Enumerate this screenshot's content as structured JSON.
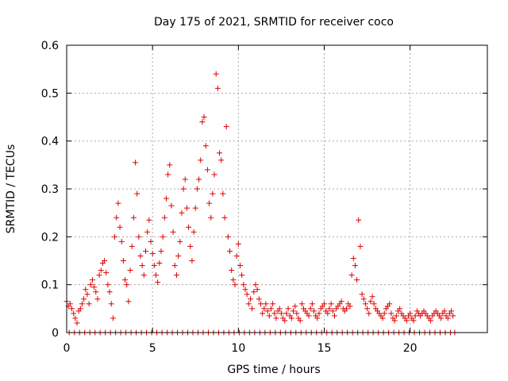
{
  "chart_data": {
    "type": "scatter",
    "title": "Day 175 of 2021, SRMTID for receiver coco",
    "xlabel": "GPS time / hours",
    "ylabel": "SRMTID / TECUs",
    "xlim": [
      0,
      24.5
    ],
    "ylim": [
      0,
      0.6
    ],
    "x_ticks": [
      0,
      5,
      10,
      15,
      20
    ],
    "y_ticks": [
      0,
      0.1,
      0.2,
      0.3,
      0.4,
      0.5,
      0.6
    ],
    "x_tick_labels": [
      "0",
      "5",
      "10",
      "15",
      "20"
    ],
    "y_tick_labels": [
      "0",
      "0.1",
      "0.2",
      "0.3",
      "0.4",
      "0.5",
      "0.6"
    ],
    "grid": true,
    "marker": "plus",
    "marker_color": "#dd0000",
    "series": [
      {
        "name": "SRMTID",
        "points": [
          [
            0.0,
            0.065
          ],
          [
            0.1,
            0.055
          ],
          [
            0.2,
            0.06
          ],
          [
            0.3,
            0.05
          ],
          [
            0.4,
            0.04
          ],
          [
            0.5,
            0.03
          ],
          [
            0.6,
            0.02
          ],
          [
            0.7,
            0.045
          ],
          [
            0.8,
            0.05
          ],
          [
            0.9,
            0.06
          ],
          [
            1.0,
            0.07
          ],
          [
            1.1,
            0.09
          ],
          [
            1.2,
            0.08
          ],
          [
            1.3,
            0.06
          ],
          [
            1.4,
            0.1
          ],
          [
            1.5,
            0.11
          ],
          [
            1.6,
            0.095
          ],
          [
            1.7,
            0.085
          ],
          [
            1.8,
            0.07
          ],
          [
            1.9,
            0.12
          ],
          [
            2.0,
            0.13
          ],
          [
            2.1,
            0.145
          ],
          [
            2.2,
            0.15
          ],
          [
            2.3,
            0.125
          ],
          [
            2.4,
            0.1
          ],
          [
            2.5,
            0.085
          ],
          [
            2.6,
            0.06
          ],
          [
            2.7,
            0.03
          ],
          [
            2.8,
            0.2
          ],
          [
            2.9,
            0.24
          ],
          [
            3.0,
            0.27
          ],
          [
            3.1,
            0.22
          ],
          [
            3.2,
            0.19
          ],
          [
            3.3,
            0.15
          ],
          [
            3.4,
            0.11
          ],
          [
            3.5,
            0.1
          ],
          [
            3.6,
            0.065
          ],
          [
            3.7,
            0.13
          ],
          [
            3.8,
            0.18
          ],
          [
            3.9,
            0.24
          ],
          [
            4.0,
            0.355
          ],
          [
            4.1,
            0.29
          ],
          [
            4.2,
            0.2
          ],
          [
            4.3,
            0.16
          ],
          [
            4.4,
            0.14
          ],
          [
            4.5,
            0.12
          ],
          [
            4.6,
            0.17
          ],
          [
            4.7,
            0.21
          ],
          [
            4.8,
            0.235
          ],
          [
            4.9,
            0.19
          ],
          [
            5.0,
            0.165
          ],
          [
            5.1,
            0.14
          ],
          [
            5.2,
            0.12
          ],
          [
            5.3,
            0.105
          ],
          [
            5.4,
            0.145
          ],
          [
            5.5,
            0.17
          ],
          [
            5.6,
            0.2
          ],
          [
            5.7,
            0.24
          ],
          [
            5.8,
            0.28
          ],
          [
            5.9,
            0.33
          ],
          [
            6.0,
            0.35
          ],
          [
            6.1,
            0.265
          ],
          [
            6.2,
            0.21
          ],
          [
            6.3,
            0.14
          ],
          [
            6.4,
            0.12
          ],
          [
            6.5,
            0.16
          ],
          [
            6.6,
            0.19
          ],
          [
            6.7,
            0.25
          ],
          [
            6.8,
            0.3
          ],
          [
            6.9,
            0.32
          ],
          [
            7.0,
            0.26
          ],
          [
            7.1,
            0.22
          ],
          [
            7.2,
            0.18
          ],
          [
            7.3,
            0.15
          ],
          [
            7.4,
            0.21
          ],
          [
            7.5,
            0.26
          ],
          [
            7.6,
            0.3
          ],
          [
            7.7,
            0.32
          ],
          [
            7.8,
            0.36
          ],
          [
            7.9,
            0.44
          ],
          [
            8.0,
            0.45
          ],
          [
            8.1,
            0.39
          ],
          [
            8.2,
            0.34
          ],
          [
            8.3,
            0.27
          ],
          [
            8.4,
            0.24
          ],
          [
            8.5,
            0.29
          ],
          [
            8.6,
            0.33
          ],
          [
            8.7,
            0.54
          ],
          [
            8.8,
            0.51
          ],
          [
            8.9,
            0.375
          ],
          [
            9.0,
            0.36
          ],
          [
            9.1,
            0.29
          ],
          [
            9.2,
            0.24
          ],
          [
            9.3,
            0.43
          ],
          [
            9.4,
            0.2
          ],
          [
            9.5,
            0.17
          ],
          [
            9.6,
            0.13
          ],
          [
            9.7,
            0.11
          ],
          [
            9.8,
            0.1
          ],
          [
            9.9,
            0.16
          ],
          [
            10.0,
            0.185
          ],
          [
            10.1,
            0.14
          ],
          [
            10.2,
            0.12
          ],
          [
            10.3,
            0.1
          ],
          [
            10.4,
            0.09
          ],
          [
            10.5,
            0.08
          ],
          [
            10.6,
            0.06
          ],
          [
            10.7,
            0.07
          ],
          [
            10.8,
            0.05
          ],
          [
            10.9,
            0.085
          ],
          [
            11.0,
            0.1
          ],
          [
            11.1,
            0.09
          ],
          [
            11.2,
            0.07
          ],
          [
            11.3,
            0.06
          ],
          [
            11.4,
            0.04
          ],
          [
            11.5,
            0.05
          ],
          [
            11.6,
            0.06
          ],
          [
            11.7,
            0.045
          ],
          [
            11.8,
            0.035
          ],
          [
            11.9,
            0.05
          ],
          [
            12.0,
            0.06
          ],
          [
            12.1,
            0.04
          ],
          [
            12.2,
            0.03
          ],
          [
            12.3,
            0.045
          ],
          [
            12.4,
            0.05
          ],
          [
            12.5,
            0.04
          ],
          [
            12.6,
            0.03
          ],
          [
            12.7,
            0.025
          ],
          [
            12.8,
            0.04
          ],
          [
            12.9,
            0.05
          ],
          [
            13.0,
            0.035
          ],
          [
            13.1,
            0.03
          ],
          [
            13.2,
            0.045
          ],
          [
            13.3,
            0.055
          ],
          [
            13.4,
            0.04
          ],
          [
            13.5,
            0.03
          ],
          [
            13.6,
            0.025
          ],
          [
            13.7,
            0.06
          ],
          [
            13.8,
            0.05
          ],
          [
            13.9,
            0.045
          ],
          [
            14.0,
            0.04
          ],
          [
            14.1,
            0.035
          ],
          [
            14.2,
            0.05
          ],
          [
            14.3,
            0.06
          ],
          [
            14.4,
            0.045
          ],
          [
            14.5,
            0.035
          ],
          [
            14.6,
            0.03
          ],
          [
            14.7,
            0.04
          ],
          [
            14.8,
            0.05
          ],
          [
            14.9,
            0.055
          ],
          [
            15.0,
            0.06
          ],
          [
            15.1,
            0.045
          ],
          [
            15.2,
            0.04
          ],
          [
            15.3,
            0.05
          ],
          [
            15.4,
            0.06
          ],
          [
            15.5,
            0.045
          ],
          [
            15.6,
            0.035
          ],
          [
            15.7,
            0.05
          ],
          [
            15.8,
            0.055
          ],
          [
            15.9,
            0.06
          ],
          [
            16.0,
            0.065
          ],
          [
            16.1,
            0.05
          ],
          [
            16.2,
            0.045
          ],
          [
            16.3,
            0.05
          ],
          [
            16.4,
            0.06
          ],
          [
            16.5,
            0.055
          ],
          [
            16.6,
            0.12
          ],
          [
            16.7,
            0.155
          ],
          [
            16.8,
            0.14
          ],
          [
            16.9,
            0.11
          ],
          [
            17.0,
            0.235
          ],
          [
            17.1,
            0.18
          ],
          [
            17.2,
            0.08
          ],
          [
            17.3,
            0.07
          ],
          [
            17.4,
            0.06
          ],
          [
            17.5,
            0.05
          ],
          [
            17.6,
            0.04
          ],
          [
            17.7,
            0.065
          ],
          [
            17.8,
            0.075
          ],
          [
            17.9,
            0.06
          ],
          [
            18.0,
            0.05
          ],
          [
            18.1,
            0.045
          ],
          [
            18.2,
            0.04
          ],
          [
            18.3,
            0.035
          ],
          [
            18.4,
            0.03
          ],
          [
            18.5,
            0.04
          ],
          [
            18.6,
            0.05
          ],
          [
            18.7,
            0.055
          ],
          [
            18.8,
            0.06
          ],
          [
            18.9,
            0.04
          ],
          [
            19.0,
            0.03
          ],
          [
            19.1,
            0.025
          ],
          [
            19.2,
            0.035
          ],
          [
            19.3,
            0.045
          ],
          [
            19.4,
            0.05
          ],
          [
            19.5,
            0.04
          ],
          [
            19.6,
            0.035
          ],
          [
            19.7,
            0.03
          ],
          [
            19.8,
            0.025
          ],
          [
            19.9,
            0.035
          ],
          [
            20.0,
            0.04
          ],
          [
            20.1,
            0.03
          ],
          [
            20.2,
            0.025
          ],
          [
            20.3,
            0.035
          ],
          [
            20.4,
            0.045
          ],
          [
            20.5,
            0.04
          ],
          [
            20.6,
            0.035
          ],
          [
            20.7,
            0.04
          ],
          [
            20.8,
            0.045
          ],
          [
            20.9,
            0.04
          ],
          [
            21.0,
            0.035
          ],
          [
            21.1,
            0.03
          ],
          [
            21.2,
            0.025
          ],
          [
            21.3,
            0.035
          ],
          [
            21.4,
            0.04
          ],
          [
            21.5,
            0.045
          ],
          [
            21.6,
            0.04
          ],
          [
            21.7,
            0.035
          ],
          [
            21.8,
            0.03
          ],
          [
            21.9,
            0.04
          ],
          [
            22.0,
            0.045
          ],
          [
            22.1,
            0.035
          ],
          [
            22.2,
            0.03
          ],
          [
            22.3,
            0.04
          ],
          [
            22.4,
            0.045
          ],
          [
            22.5,
            0.035
          ],
          [
            0.15,
            0.0
          ],
          [
            0.45,
            0.0
          ],
          [
            0.75,
            0.0
          ],
          [
            1.05,
            0.0
          ],
          [
            1.35,
            0.0
          ],
          [
            1.65,
            0.0
          ],
          [
            1.95,
            0.0
          ],
          [
            2.25,
            0.0
          ],
          [
            2.55,
            0.0
          ],
          [
            2.85,
            0.0
          ],
          [
            3.15,
            0.0
          ],
          [
            3.45,
            0.0
          ],
          [
            3.75,
            0.0
          ],
          [
            4.05,
            0.0
          ],
          [
            4.35,
            0.0
          ],
          [
            4.65,
            0.0
          ],
          [
            4.95,
            0.0
          ],
          [
            5.25,
            0.0
          ],
          [
            5.55,
            0.0
          ],
          [
            5.85,
            0.0
          ],
          [
            6.15,
            0.0
          ],
          [
            6.45,
            0.0
          ],
          [
            6.75,
            0.0
          ],
          [
            7.05,
            0.0
          ],
          [
            7.35,
            0.0
          ],
          [
            7.65,
            0.0
          ],
          [
            7.95,
            0.0
          ],
          [
            8.25,
            0.0
          ],
          [
            8.55,
            0.0
          ],
          [
            8.85,
            0.0
          ],
          [
            9.15,
            0.0
          ],
          [
            9.45,
            0.0
          ],
          [
            9.75,
            0.0
          ],
          [
            10.05,
            0.0
          ],
          [
            10.35,
            0.0
          ],
          [
            10.65,
            0.0
          ],
          [
            10.95,
            0.0
          ],
          [
            11.25,
            0.0
          ],
          [
            11.55,
            0.0
          ],
          [
            11.85,
            0.0
          ],
          [
            12.15,
            0.0
          ],
          [
            12.45,
            0.0
          ],
          [
            12.75,
            0.0
          ],
          [
            13.05,
            0.0
          ],
          [
            13.35,
            0.0
          ],
          [
            13.65,
            0.0
          ],
          [
            13.95,
            0.0
          ],
          [
            14.25,
            0.0
          ],
          [
            14.55,
            0.0
          ],
          [
            14.85,
            0.0
          ],
          [
            15.15,
            0.0
          ],
          [
            15.45,
            0.0
          ],
          [
            15.75,
            0.0
          ],
          [
            16.05,
            0.0
          ],
          [
            16.35,
            0.0
          ],
          [
            16.65,
            0.0
          ],
          [
            16.95,
            0.0
          ],
          [
            17.25,
            0.0
          ],
          [
            17.55,
            0.0
          ],
          [
            17.85,
            0.0
          ],
          [
            18.15,
            0.0
          ],
          [
            18.45,
            0.0
          ],
          [
            18.75,
            0.0
          ],
          [
            19.05,
            0.0
          ],
          [
            19.35,
            0.0
          ],
          [
            19.65,
            0.0
          ],
          [
            19.95,
            0.0
          ],
          [
            20.25,
            0.0
          ],
          [
            20.55,
            0.0
          ],
          [
            20.85,
            0.0
          ],
          [
            21.15,
            0.0
          ],
          [
            21.45,
            0.0
          ],
          [
            21.75,
            0.0
          ],
          [
            22.05,
            0.0
          ],
          [
            22.35,
            0.0
          ],
          [
            22.6,
            0.0
          ]
        ]
      }
    ]
  }
}
